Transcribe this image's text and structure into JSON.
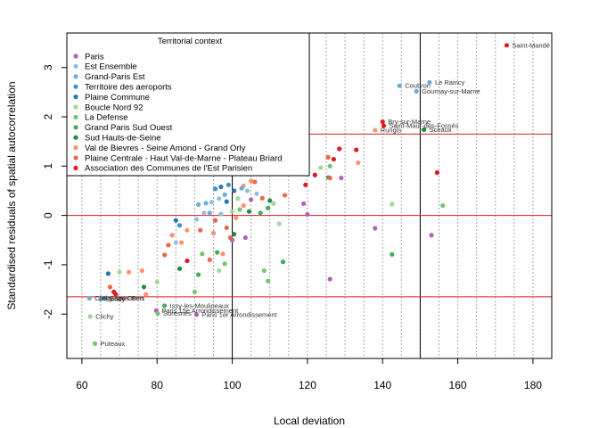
{
  "chart_data": {
    "type": "scatter",
    "xlabel": "Local deviation",
    "ylabel": "Standardised residuals of spatial autocorrelation",
    "xlim": [
      56,
      185
    ],
    "ylim": [
      -2.9,
      3.7
    ],
    "xticks": [
      "60",
      "80",
      "100",
      "120",
      "140",
      "160",
      "180"
    ],
    "yticks": [
      "-2",
      "-1",
      "0",
      "1",
      "2",
      "3"
    ],
    "xtick_values": [
      60,
      80,
      100,
      120,
      140,
      160,
      180
    ],
    "ytick_values": [
      -2,
      -1,
      0,
      1,
      2,
      3
    ],
    "vertical_dotted_lines": [
      60,
      65,
      70,
      75,
      80,
      85,
      90,
      95,
      100,
      105,
      110,
      115,
      120,
      125,
      130,
      135,
      140,
      145,
      150,
      155,
      160,
      165,
      170,
      175,
      180
    ],
    "vertical_solid_lines": [
      100,
      150
    ],
    "horizontal_red_lines": [
      -1.65,
      0,
      1.65
    ],
    "legend": {
      "title": "Territorial context",
      "position": "top-left",
      "entries": [
        {
          "name": "Paris",
          "color": "#b55fbe"
        },
        {
          "name": "Est Ensemble",
          "color": "#8fc1df"
        },
        {
          "name": "Grand-Paris Est",
          "color": "#6aaed6"
        },
        {
          "name": "Territoire des aeroports",
          "color": "#4292c6"
        },
        {
          "name": "Plaine Commune",
          "color": "#2777b3"
        },
        {
          "name": "Boucle Nord 92",
          "color": "#a1d99b"
        },
        {
          "name": "La Defense",
          "color": "#74c476"
        },
        {
          "name": "Grand Paris Sud Ouest",
          "color": "#41ab5d"
        },
        {
          "name": "Sud Hauts-de-Seine",
          "color": "#238b45"
        },
        {
          "name": "Val de Bievres - Seine Amond - Grand Orly",
          "color": "#fc9272"
        },
        {
          "name": "Plaine Centrale - Haut Val-de-Marne - Plateau Briard",
          "color": "#ef6548"
        },
        {
          "name": "Association des Communes de l'Est Parisien",
          "color": "#e31a1c"
        }
      ]
    },
    "labeled_points": [
      {
        "label": "Saint-Mandé",
        "x": 173,
        "y": 3.45,
        "color": "#e31a1c"
      },
      {
        "label": "Le Raincy",
        "x": 152.5,
        "y": 2.7,
        "color": "#6aaed6"
      },
      {
        "label": "Coubron",
        "x": 144.5,
        "y": 2.63,
        "color": "#6aaed6"
      },
      {
        "label": "Gournay-sur-Marne",
        "x": 149,
        "y": 2.52,
        "color": "#6aaed6"
      },
      {
        "label": "Bry-sur-Marne",
        "x": 140,
        "y": 1.9,
        "color": "#e31a1c"
      },
      {
        "label": "Saint-Maur-des-Fossés",
        "x": 140.3,
        "y": 1.82,
        "color": "#e31a1c"
      },
      {
        "label": "Rungis",
        "x": 138,
        "y": 1.73,
        "color": "#fc9272"
      },
      {
        "label": "Sceaux",
        "x": 151,
        "y": 1.74,
        "color": "#238b45"
      },
      {
        "label": "Clichy-sous-Bois",
        "x": 62,
        "y": -1.68,
        "color": "#6aaed6"
      },
      {
        "label": "Bondy",
        "x": 65,
        "y": -1.7,
        "color": "#6aaed6"
      },
      {
        "label": "Saint-Ouen",
        "x": 66,
        "y": -1.68,
        "color": "#2777b3"
      },
      {
        "label": "Issy-les-Moulineaux",
        "x": 82,
        "y": -1.83,
        "color": "#41ab5d"
      },
      {
        "label": "Paris 15e Arrondissement",
        "x": 79.8,
        "y": -1.93,
        "color": "#b55fbe"
      },
      {
        "label": "Suresnes",
        "x": 80.2,
        "y": -1.99,
        "color": "#74c476"
      },
      {
        "label": "Paris 1er Arrondissement",
        "x": 90.5,
        "y": -2.01,
        "color": "#b55fbe"
      },
      {
        "label": "Clichy",
        "x": 62.2,
        "y": -2.05,
        "color": "#a1d99b"
      },
      {
        "label": "Puteaux",
        "x": 63.5,
        "y": -2.6,
        "color": "#74c476"
      }
    ],
    "points": [
      {
        "x": 128.5,
        "y": 1.35,
        "color": "#e31a1c"
      },
      {
        "x": 133,
        "y": 1.33,
        "color": "#e31a1c"
      },
      {
        "x": 133.5,
        "y": 1.07,
        "color": "#fc9272"
      },
      {
        "x": 125.5,
        "y": 1.18,
        "color": "#ef6548"
      },
      {
        "x": 127,
        "y": 1.14,
        "color": "#e31a1c"
      },
      {
        "x": 126,
        "y": 1.0,
        "color": "#74c476"
      },
      {
        "x": 123.5,
        "y": 0.97,
        "color": "#a1d99b"
      },
      {
        "x": 129,
        "y": 0.76,
        "color": "#b55fbe"
      },
      {
        "x": 125.5,
        "y": 0.77,
        "color": "#41ab5d"
      },
      {
        "x": 126,
        "y": 0.76,
        "color": "#ef6548"
      },
      {
        "x": 122,
        "y": 0.82,
        "color": "#e31a1c"
      },
      {
        "x": 119.5,
        "y": 1.32,
        "color": "#fc9272"
      },
      {
        "x": 118.5,
        "y": 1.26,
        "color": "#8fc1df"
      },
      {
        "x": 116.5,
        "y": 1.0,
        "color": "#ef6548"
      },
      {
        "x": 118.5,
        "y": 0.96,
        "color": "#a1d99b"
      },
      {
        "x": 119.5,
        "y": 0.62,
        "color": "#e31a1c"
      },
      {
        "x": 119,
        "y": 0.24,
        "color": "#b55fbe"
      },
      {
        "x": 120,
        "y": 0.02,
        "color": "#b55fbe"
      },
      {
        "x": 154.5,
        "y": 0.87,
        "color": "#e31a1c"
      },
      {
        "x": 156,
        "y": 0.2,
        "color": "#74c476"
      },
      {
        "x": 153,
        "y": -0.4,
        "color": "#b55fbe"
      },
      {
        "x": 142.5,
        "y": 0.23,
        "color": "#a1d99b"
      },
      {
        "x": 142.5,
        "y": -0.79,
        "color": "#41ab5d"
      },
      {
        "x": 138,
        "y": -0.26,
        "color": "#b55fbe"
      },
      {
        "x": 126,
        "y": -1.29,
        "color": "#b55fbe"
      },
      {
        "x": 108.5,
        "y": -1.12,
        "color": "#74c476"
      },
      {
        "x": 109.5,
        "y": -1.33,
        "color": "#74c476"
      },
      {
        "x": 113.5,
        "y": -0.94,
        "color": "#41ab5d"
      },
      {
        "x": 112.5,
        "y": -0.17,
        "color": "#a1d99b"
      },
      {
        "x": 111,
        "y": 0.24,
        "color": "#a1d99b"
      },
      {
        "x": 114,
        "y": 0.41,
        "color": "#ef6548"
      },
      {
        "x": 110,
        "y": 0.3,
        "color": "#238b45"
      },
      {
        "x": 108,
        "y": 0.35,
        "color": "#ef6548"
      },
      {
        "x": 106,
        "y": 0.68,
        "color": "#ef6548"
      },
      {
        "x": 105,
        "y": 0.7,
        "color": "#fc9272"
      },
      {
        "x": 103,
        "y": 0.6,
        "color": "#fc9272"
      },
      {
        "x": 102.5,
        "y": 0.55,
        "color": "#6aaed6"
      },
      {
        "x": 104,
        "y": 0.5,
        "color": "#8fc1df"
      },
      {
        "x": 106.5,
        "y": 0.44,
        "color": "#8fc1df"
      },
      {
        "x": 105,
        "y": 0.32,
        "color": "#b55fbe"
      },
      {
        "x": 103,
        "y": 0.2,
        "color": "#fc9272"
      },
      {
        "x": 101.5,
        "y": 0.34,
        "color": "#a1d99b"
      },
      {
        "x": 99,
        "y": 0.62,
        "color": "#4292c6"
      },
      {
        "x": 97,
        "y": 0.58,
        "color": "#2777b3"
      },
      {
        "x": 95.5,
        "y": 0.54,
        "color": "#4292c6"
      },
      {
        "x": 98,
        "y": 0.42,
        "color": "#6aaed6"
      },
      {
        "x": 100.5,
        "y": 0.5,
        "color": "#2777b3"
      },
      {
        "x": 96.5,
        "y": 0.34,
        "color": "#8fc1df"
      },
      {
        "x": 94.5,
        "y": 0.27,
        "color": "#8fc1df"
      },
      {
        "x": 93,
        "y": 0.25,
        "color": "#6aaed6"
      },
      {
        "x": 91,
        "y": 0.22,
        "color": "#6aaed6"
      },
      {
        "x": 98.5,
        "y": 0.28,
        "color": "#2777b3"
      },
      {
        "x": 102,
        "y": 0.12,
        "color": "#74c476"
      },
      {
        "x": 104.5,
        "y": 0.08,
        "color": "#238b45"
      },
      {
        "x": 100,
        "y": 0.08,
        "color": "#a1d99b"
      },
      {
        "x": 101,
        "y": -0.05,
        "color": "#fc9272"
      },
      {
        "x": 107.5,
        "y": 0.05,
        "color": "#41ab5d"
      },
      {
        "x": 109.5,
        "y": 0.15,
        "color": "#41ab5d"
      },
      {
        "x": 97,
        "y": 0.03,
        "color": "#8fc1df"
      },
      {
        "x": 94,
        "y": 0.05,
        "color": "#6aaed6"
      },
      {
        "x": 92.5,
        "y": 0.05,
        "color": "#8fc1df"
      },
      {
        "x": 90.5,
        "y": -0.08,
        "color": "#8fc1df"
      },
      {
        "x": 95.5,
        "y": -0.1,
        "color": "#ef6548"
      },
      {
        "x": 98.5,
        "y": -0.25,
        "color": "#ef6548"
      },
      {
        "x": 100.5,
        "y": -0.38,
        "color": "#238b45"
      },
      {
        "x": 99.5,
        "y": -0.45,
        "color": "#ef6548"
      },
      {
        "x": 100,
        "y": -0.5,
        "color": "#b55fbe"
      },
      {
        "x": 103.5,
        "y": -0.45,
        "color": "#b55fbe"
      },
      {
        "x": 95,
        "y": -0.36,
        "color": "#fc9272"
      },
      {
        "x": 91.5,
        "y": -0.3,
        "color": "#ef6548"
      },
      {
        "x": 88,
        "y": -0.3,
        "color": "#fc9272"
      },
      {
        "x": 86,
        "y": -0.2,
        "color": "#4292c6"
      },
      {
        "x": 85,
        "y": -0.1,
        "color": "#2777b3"
      },
      {
        "x": 84,
        "y": -0.4,
        "color": "#fc9272"
      },
      {
        "x": 83,
        "y": -0.6,
        "color": "#ef6548"
      },
      {
        "x": 86.5,
        "y": -0.55,
        "color": "#fc9272"
      },
      {
        "x": 85,
        "y": -0.55,
        "color": "#8fc1df"
      },
      {
        "x": 82,
        "y": -0.8,
        "color": "#ef6548"
      },
      {
        "x": 86,
        "y": -1.08,
        "color": "#238b45"
      },
      {
        "x": 88,
        "y": -0.92,
        "color": "#e31a1c"
      },
      {
        "x": 92,
        "y": -0.78,
        "color": "#74c476"
      },
      {
        "x": 94,
        "y": -0.9,
        "color": "#ef6548"
      },
      {
        "x": 96,
        "y": -0.75,
        "color": "#41ab5d"
      },
      {
        "x": 97.5,
        "y": -0.78,
        "color": "#fc9272"
      },
      {
        "x": 98,
        "y": -0.98,
        "color": "#74c476"
      },
      {
        "x": 96.5,
        "y": -1.12,
        "color": "#a1d99b"
      },
      {
        "x": 91,
        "y": -1.2,
        "color": "#41ab5d"
      },
      {
        "x": 90,
        "y": -1.55,
        "color": "#74c476"
      },
      {
        "x": 80,
        "y": -1.35,
        "color": "#a1d99b"
      },
      {
        "x": 76,
        "y": -1.12,
        "color": "#fc9272"
      },
      {
        "x": 76.5,
        "y": -1.45,
        "color": "#238b45"
      },
      {
        "x": 77,
        "y": -1.6,
        "color": "#fc9272"
      },
      {
        "x": 72.5,
        "y": -1.15,
        "color": "#fc9272"
      },
      {
        "x": 70,
        "y": -1.15,
        "color": "#a1d99b"
      },
      {
        "x": 67,
        "y": -1.18,
        "color": "#2777b3"
      },
      {
        "x": 67.5,
        "y": -1.45,
        "color": "#ef6548"
      },
      {
        "x": 68.5,
        "y": -1.55,
        "color": "#e31a1c"
      },
      {
        "x": 69,
        "y": -1.6,
        "color": "#e31a1c"
      }
    ]
  }
}
